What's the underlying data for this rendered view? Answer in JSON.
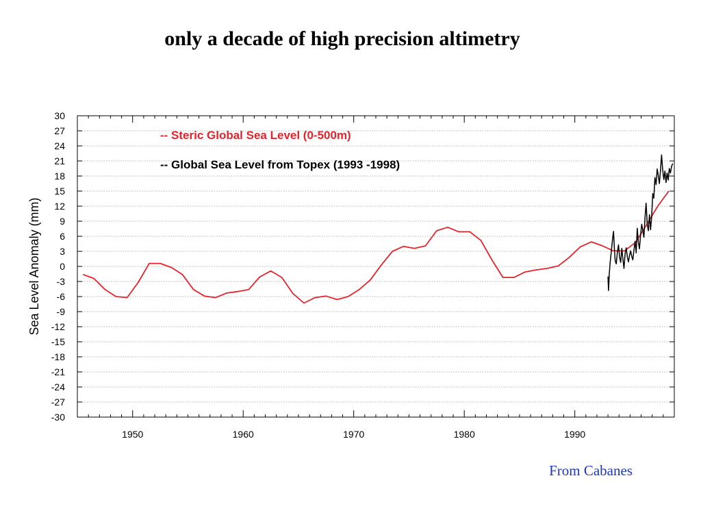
{
  "slide": {
    "title": "only a decade of high precision altimetry",
    "credit": "From Cabanes"
  },
  "colors": {
    "steric": "#e8222a",
    "topex": "#000000",
    "credit": "#1a37c8",
    "grid": "#9a9a9a"
  },
  "chart_data": {
    "type": "line",
    "title": "",
    "xlabel": "",
    "ylabel": "Sea Level Anomaly (mm)",
    "xlim": [
      1945,
      1999
    ],
    "ylim": [
      -30,
      30
    ],
    "xticks": [
      1950,
      1960,
      1970,
      1980,
      1990
    ],
    "yticks": [
      30,
      27,
      24,
      21,
      18,
      15,
      12,
      9,
      6,
      3,
      0,
      -3,
      -6,
      -9,
      -12,
      -15,
      -18,
      -21,
      -24,
      -27,
      -30
    ],
    "grid": "horizontal dotted",
    "legend_placement": "top-left",
    "series": [
      {
        "name": "-- Steric Global Sea Level (0-500m)",
        "color": "#e8222a",
        "x": [
          1945.5,
          1946.5,
          1947.5,
          1948.5,
          1949.5,
          1950.5,
          1951.5,
          1952.5,
          1953.5,
          1954.5,
          1955.5,
          1956.5,
          1957.5,
          1958.5,
          1959.5,
          1960.5,
          1961.5,
          1962.5,
          1963.5,
          1964.5,
          1965.5,
          1966.5,
          1967.5,
          1968.5,
          1969.5,
          1970.5,
          1971.5,
          1972.5,
          1973.5,
          1974.5,
          1975.5,
          1976.5,
          1977.5,
          1978.5,
          1979.5,
          1980.5,
          1981.5,
          1982.5,
          1983.5,
          1984.5,
          1985.5,
          1986.5,
          1987.5,
          1988.5,
          1989.5,
          1990.5,
          1991.5,
          1992.5,
          1993.5,
          1994.5,
          1995.5,
          1996.5,
          1997.5,
          1998.5
        ],
        "values": [
          -1.6,
          -2.4,
          -4.6,
          -6.0,
          -6.2,
          -3.2,
          0.6,
          0.6,
          -0.2,
          -1.6,
          -4.6,
          -5.9,
          -6.2,
          -5.3,
          -5.0,
          -4.6,
          -2.1,
          -0.9,
          -2.2,
          -5.4,
          -7.3,
          -6.2,
          -5.9,
          -6.6,
          -6.0,
          -4.6,
          -2.7,
          0.3,
          3.0,
          4.0,
          3.6,
          4.1,
          7.1,
          7.8,
          6.9,
          6.9,
          5.2,
          1.3,
          -2.2,
          -2.2,
          -1.1,
          -0.7,
          -0.4,
          0.1,
          1.8,
          3.9,
          4.9,
          4.1,
          3.1,
          3.1,
          4.8,
          8.3,
          12.0,
          15.0
        ]
      },
      {
        "name": "-- Global Sea Level from Topex (1993 -1998)",
        "color": "#000000",
        "x": [
          1993.0,
          1993.05,
          1993.12,
          1993.2,
          1993.3,
          1993.4,
          1993.5,
          1993.58,
          1993.65,
          1993.75,
          1993.85,
          1993.95,
          1994.05,
          1994.15,
          1994.25,
          1994.35,
          1994.45,
          1994.55,
          1994.65,
          1994.75,
          1994.85,
          1994.95,
          1995.05,
          1995.15,
          1995.25,
          1995.35,
          1995.45,
          1995.55,
          1995.65,
          1995.75,
          1995.85,
          1995.95,
          1996.05,
          1996.15,
          1996.25,
          1996.35,
          1996.45,
          1996.55,
          1996.65,
          1996.75,
          1996.85,
          1996.95,
          1997.05,
          1997.15,
          1997.25,
          1997.35,
          1997.45,
          1997.55,
          1997.65,
          1997.75,
          1997.85,
          1997.95,
          1998.05,
          1998.15,
          1998.25,
          1998.35,
          1998.45,
          1998.55,
          1998.65,
          1998.75,
          1998.85
        ],
        "values": [
          -2.0,
          -4.8,
          -1.5,
          0.8,
          3.0,
          5.2,
          7.0,
          3.5,
          1.2,
          0.5,
          2.8,
          4.3,
          1.8,
          0.8,
          3.6,
          1.5,
          -0.4,
          2.5,
          3.7,
          1.9,
          0.9,
          2.2,
          3.1,
          2.0,
          1.3,
          3.3,
          5.0,
          2.7,
          7.6,
          4.8,
          3.5,
          6.2,
          8.4,
          7.2,
          5.8,
          9.7,
          12.6,
          8.5,
          7.1,
          10.3,
          7.3,
          9.8,
          14.5,
          13.6,
          17.7,
          16.3,
          19.4,
          18.1,
          16.5,
          19.1,
          22.2,
          19.3,
          17.3,
          19.0,
          16.7,
          18.6,
          17.2,
          19.5,
          18.6,
          19.9,
          20.5
        ]
      }
    ]
  }
}
